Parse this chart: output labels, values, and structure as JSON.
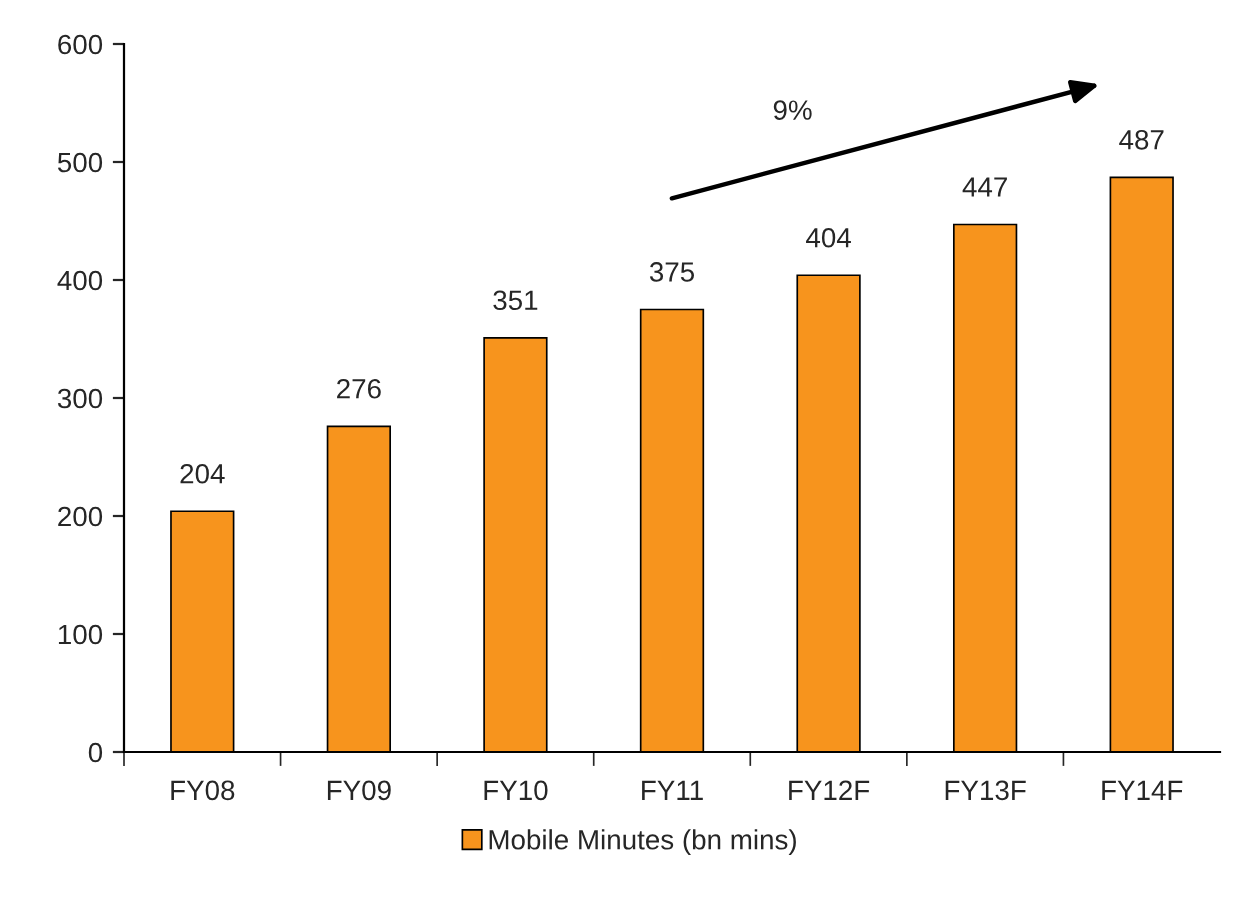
{
  "chart_data": {
    "type": "bar",
    "categories": [
      "FY08",
      "FY09",
      "FY10",
      "FY11",
      "FY12F",
      "FY13F",
      "FY14F"
    ],
    "series": [
      {
        "name": "Mobile Minutes (bn mins)",
        "color": "#f7941d",
        "values": [
          204,
          276,
          351,
          375,
          404,
          447,
          487
        ]
      }
    ],
    "ylim": [
      0,
      600
    ],
    "yticks": [
      0,
      100,
      200,
      300,
      400,
      500,
      600
    ],
    "data_labels": true,
    "grid": false,
    "legend": "bottom",
    "annotations": [
      "9%"
    ]
  }
}
